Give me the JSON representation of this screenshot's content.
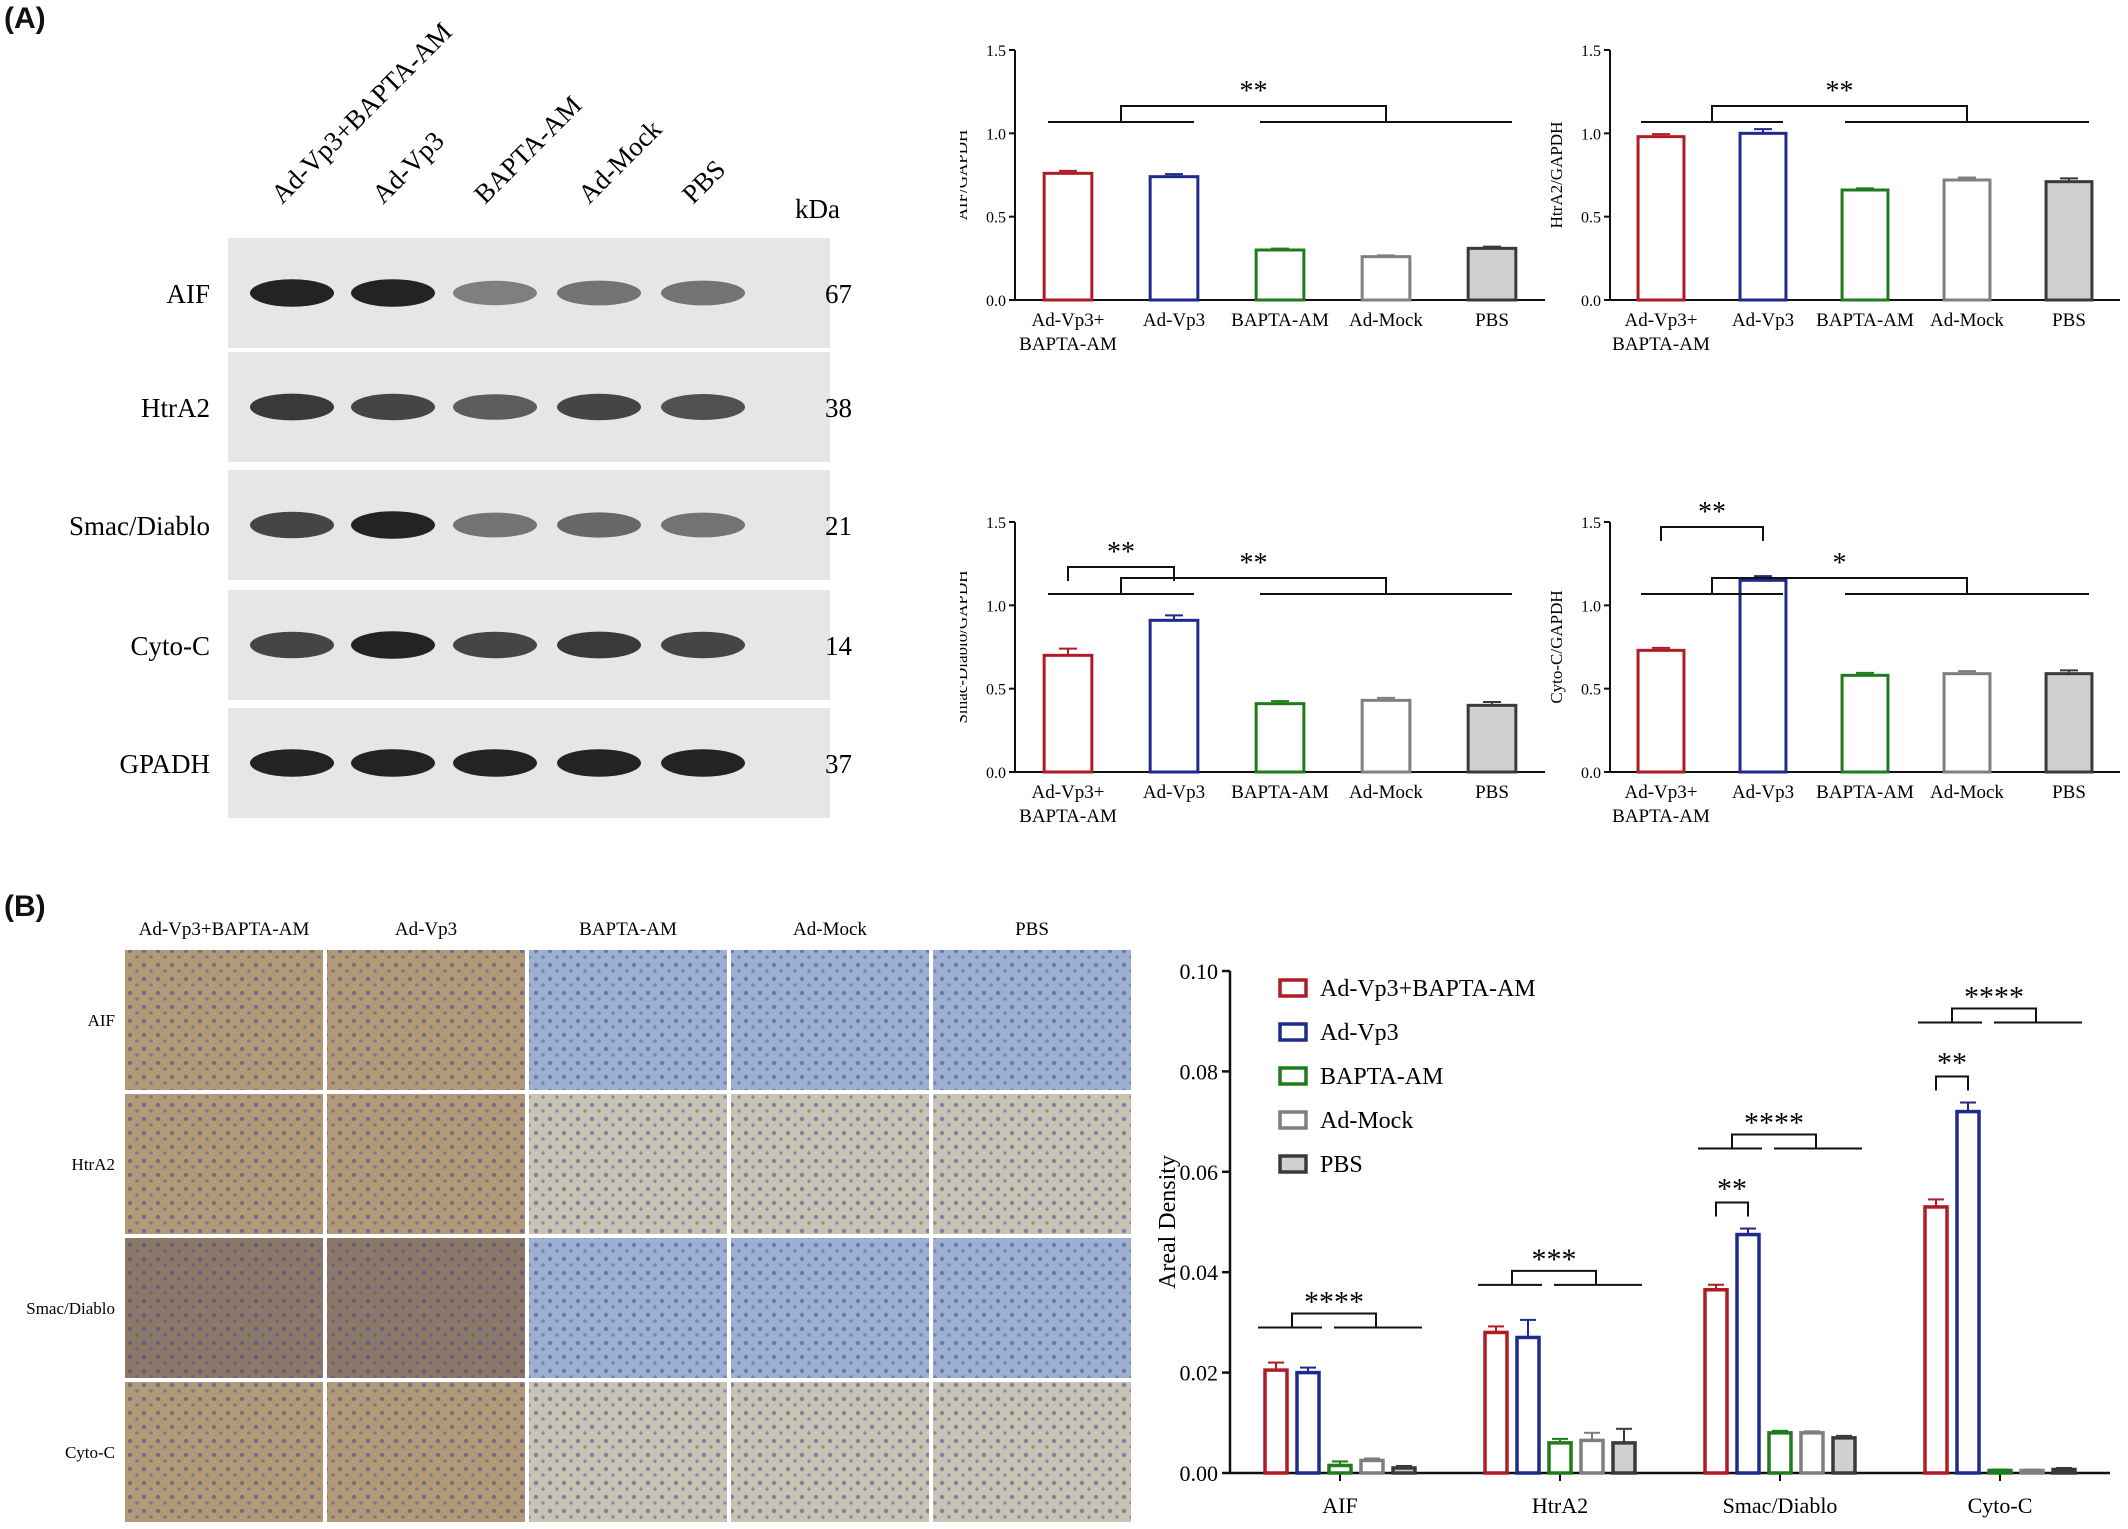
{
  "panels": {
    "a_label": "(A)",
    "b_label": "(B)"
  },
  "colors": {
    "ad_vp3_bapta": "#b01c24",
    "ad_vp3": "#1f2a8c",
    "bapta": "#1e7b1e",
    "ad_mock": "#7f7f7f",
    "pbs": "#3a3a3a",
    "pbs_fill": "#d0d0d0",
    "ihc_brown": "#b29874",
    "ihc_blue": "#9aaccb"
  },
  "western_blot": {
    "lanes": [
      "Ad-Vp3+BAPTA-AM",
      "Ad-Vp3",
      "BAPTA-AM",
      "Ad-Mock",
      "PBS"
    ],
    "kda_label": "kDa",
    "rows": [
      {
        "protein": "AIF",
        "kda": "67",
        "intensity": [
          0.95,
          0.95,
          0.55,
          0.6,
          0.6
        ]
      },
      {
        "protein": "HtrA2",
        "kda": "38",
        "intensity": [
          0.85,
          0.8,
          0.7,
          0.8,
          0.75
        ]
      },
      {
        "protein": "Smac/Diablo",
        "kda": "21",
        "intensity": [
          0.8,
          0.95,
          0.6,
          0.65,
          0.6
        ]
      },
      {
        "protein": "Cyto-C",
        "kda": "14",
        "intensity": [
          0.8,
          0.95,
          0.8,
          0.85,
          0.8
        ]
      },
      {
        "protein": "GPADH",
        "kda": "37",
        "intensity": [
          0.95,
          0.95,
          0.95,
          0.95,
          0.95
        ]
      }
    ]
  },
  "ihc": {
    "columns": [
      "Ad-Vp3+BAPTA-AM",
      "Ad-Vp3",
      "BAPTA-AM",
      "Ad-Mock",
      "PBS"
    ],
    "rows": [
      "AIF",
      "HtrA2",
      "Smac/Diablo",
      "Cyto-C"
    ],
    "stain": [
      [
        "brown",
        "brown",
        "blue",
        "blue",
        "blue"
      ],
      [
        "brown",
        "brown",
        "light",
        "light",
        "light"
      ],
      [
        "dark",
        "dark",
        "blue",
        "blue",
        "blue"
      ],
      [
        "brown",
        "brown",
        "light",
        "light",
        "light"
      ]
    ]
  },
  "chart_data": [
    {
      "type": "bar",
      "ylabel": "AIF/GAPDH",
      "categories": [
        "Ad-Vp3+\nBAPTA-AM",
        "Ad-Vp3",
        "BAPTA-AM",
        "Ad-Mock",
        "PBS"
      ],
      "values": [
        0.76,
        0.74,
        0.3,
        0.26,
        0.31
      ],
      "errors": [
        0.015,
        0.015,
        0.008,
        0.008,
        0.01
      ],
      "ylim": [
        0,
        1.5
      ],
      "yticks": [
        "0.0",
        "0.5",
        "1.0",
        "1.5"
      ],
      "annotations": [
        {
          "text": "**",
          "type": "groups"
        }
      ]
    },
    {
      "type": "bar",
      "ylabel": "HtrA2/GAPDH",
      "categories": [
        "Ad-Vp3+\nBAPTA-AM",
        "Ad-Vp3",
        "BAPTA-AM",
        "Ad-Mock",
        "PBS"
      ],
      "values": [
        0.98,
        1.0,
        0.66,
        0.72,
        0.71
      ],
      "errors": [
        0.015,
        0.025,
        0.01,
        0.015,
        0.02
      ],
      "ylim": [
        0,
        1.5
      ],
      "yticks": [
        "0.0",
        "0.5",
        "1.0",
        "1.5"
      ],
      "annotations": [
        {
          "text": "**",
          "type": "groups"
        }
      ]
    },
    {
      "type": "bar",
      "ylabel": "Smac-Diablo/GAPDH",
      "categories": [
        "Ad-Vp3+\nBAPTA-AM",
        "Ad-Vp3",
        "BAPTA-AM",
        "Ad-Mock",
        "PBS"
      ],
      "values": [
        0.7,
        0.91,
        0.41,
        0.43,
        0.4
      ],
      "errors": [
        0.04,
        0.03,
        0.015,
        0.015,
        0.02
      ],
      "ylim": [
        0,
        1.5
      ],
      "yticks": [
        "0.0",
        "0.5",
        "1.0",
        "1.5"
      ],
      "annotations": [
        {
          "text": "**",
          "type": "groups"
        },
        {
          "text": "**",
          "type": "pair"
        }
      ]
    },
    {
      "type": "bar",
      "ylabel": "Cyto-C/GAPDH",
      "categories": [
        "Ad-Vp3+\nBAPTA-AM",
        "Ad-Vp3",
        "BAPTA-AM",
        "Ad-Mock",
        "PBS"
      ],
      "values": [
        0.73,
        1.15,
        0.58,
        0.59,
        0.59
      ],
      "errors": [
        0.015,
        0.025,
        0.015,
        0.015,
        0.02
      ],
      "ylim": [
        0,
        1.5
      ],
      "yticks": [
        "0.0",
        "0.5",
        "1.0",
        "1.5"
      ],
      "annotations": [
        {
          "text": "*",
          "type": "groups"
        },
        {
          "text": "**",
          "type": "pair"
        }
      ]
    },
    {
      "type": "bar",
      "ylabel": "Areal Density",
      "categories": [
        "AIF",
        "HtrA2",
        "Smac/Diablo",
        "Cyto-C"
      ],
      "ylim": [
        0,
        0.1
      ],
      "yticks": [
        "0.00",
        "0.02",
        "0.04",
        "0.06",
        "0.08",
        "0.10"
      ],
      "series": [
        {
          "name": "Ad-Vp3+BAPTA-AM",
          "values": [
            0.0205,
            0.028,
            0.0365,
            0.053
          ],
          "errors": [
            0.0015,
            0.0012,
            0.001,
            0.0015
          ]
        },
        {
          "name": "Ad-Vp3",
          "values": [
            0.02,
            0.027,
            0.0475,
            0.072
          ],
          "errors": [
            0.001,
            0.0035,
            0.0012,
            0.0018
          ]
        },
        {
          "name": "BAPTA-AM",
          "values": [
            0.0015,
            0.006,
            0.008,
            0.0005
          ],
          "errors": [
            0.0008,
            0.0008,
            0.0004,
            0.0002
          ]
        },
        {
          "name": "Ad-Mock",
          "values": [
            0.0025,
            0.0065,
            0.008,
            0.0005
          ],
          "errors": [
            0.0004,
            0.0015,
            0.0003,
            0.0002
          ]
        },
        {
          "name": "PBS",
          "values": [
            0.001,
            0.006,
            0.007,
            0.0007
          ],
          "errors": [
            0.0004,
            0.0028,
            0.0004,
            0.0003
          ]
        }
      ],
      "annotations": [
        {
          "category": "AIF",
          "text": "****",
          "type": "groups"
        },
        {
          "category": "HtrA2",
          "text": "***",
          "type": "groups"
        },
        {
          "category": "Smac/Diablo",
          "text": "****",
          "type": "groups"
        },
        {
          "category": "Smac/Diablo",
          "text": "**",
          "type": "pair"
        },
        {
          "category": "Cyto-C",
          "text": "****",
          "type": "groups"
        },
        {
          "category": "Cyto-C",
          "text": "**",
          "type": "pair"
        }
      ],
      "legend": "top-left"
    }
  ]
}
